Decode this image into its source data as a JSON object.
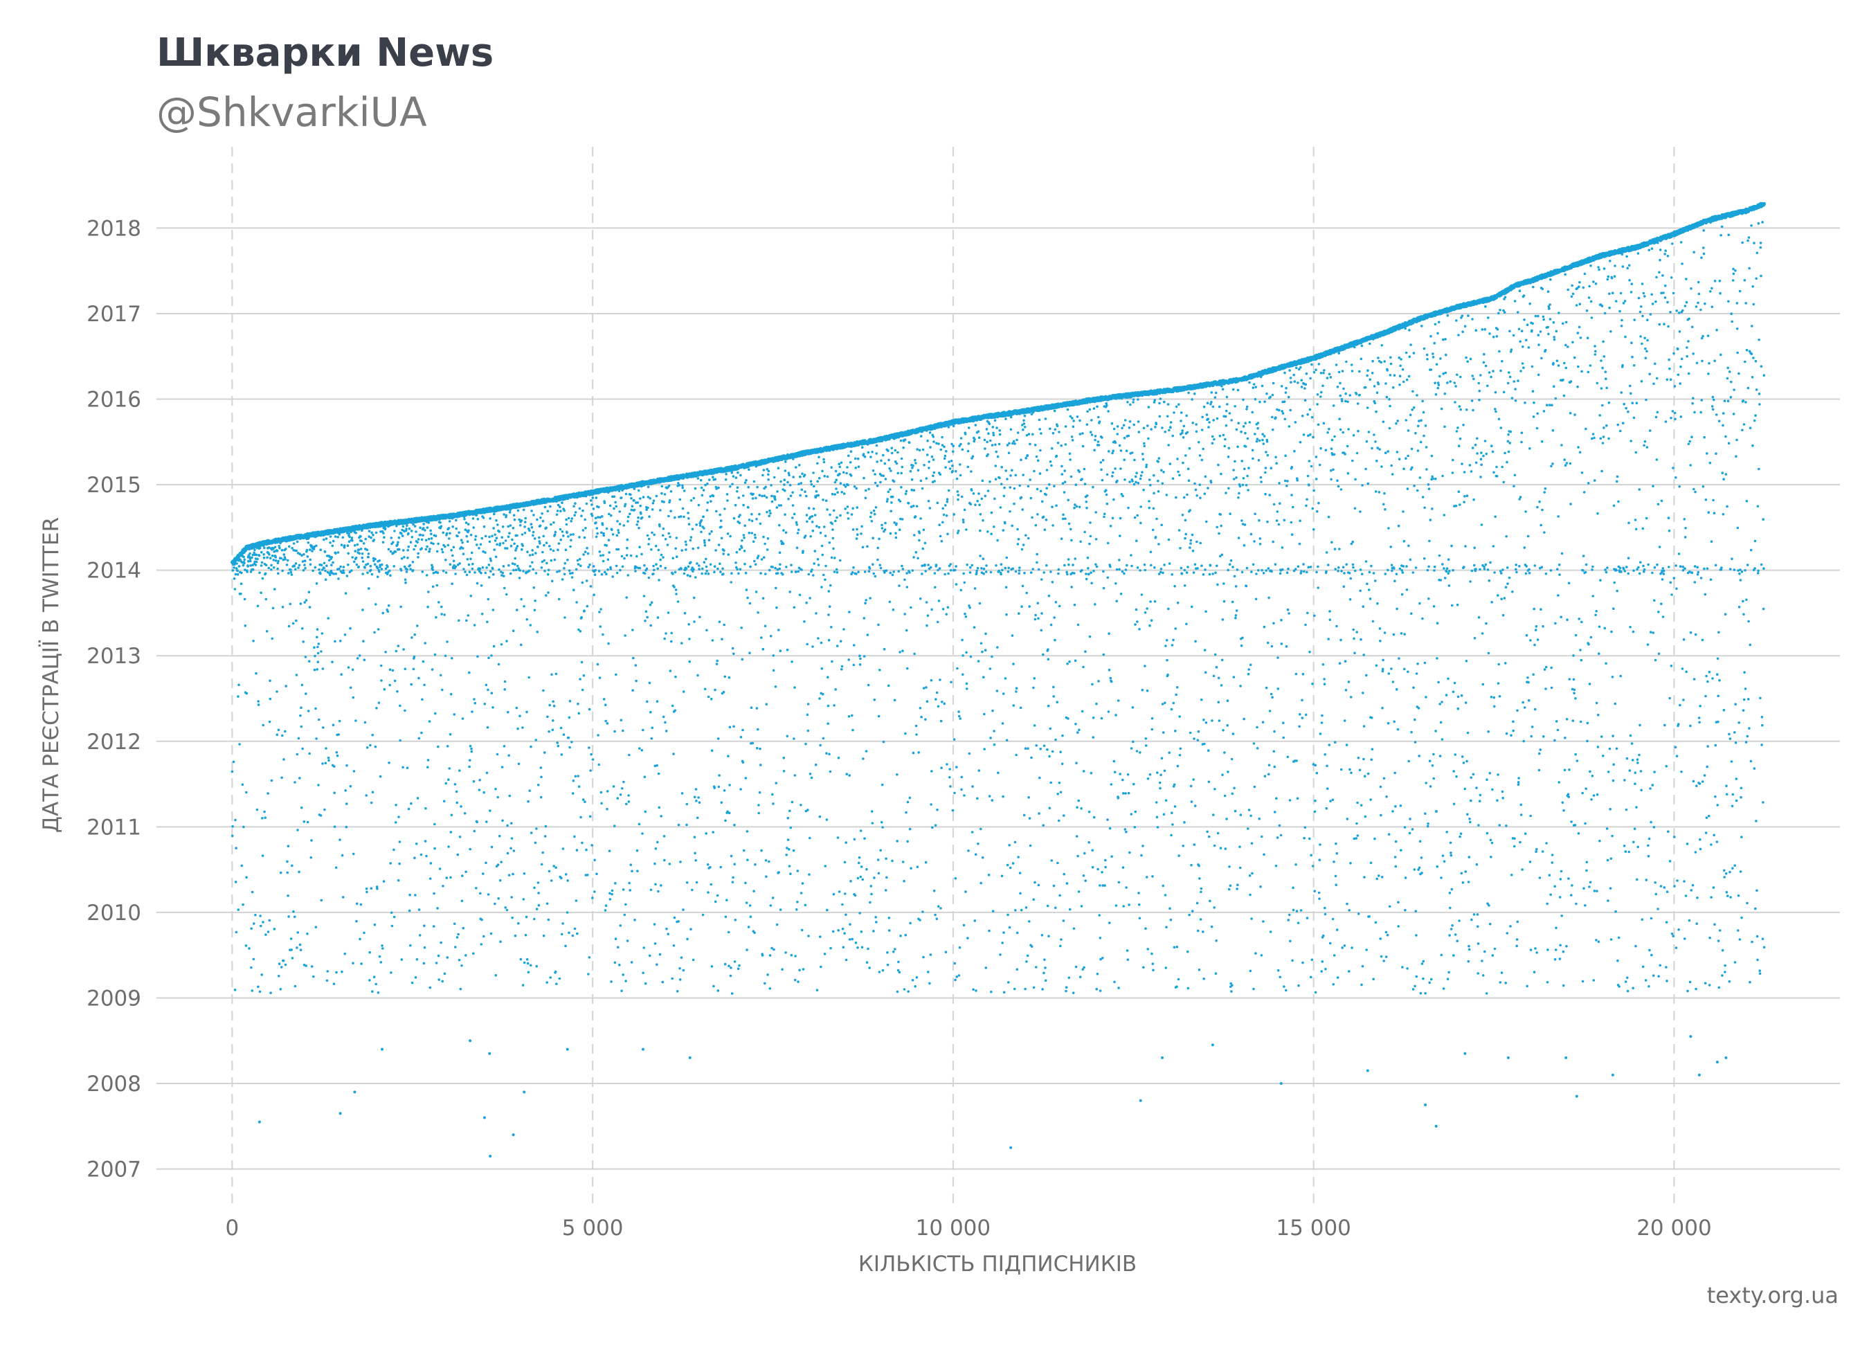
{
  "header": {
    "title": "Шкварки News",
    "subtitle": "@ShkvarkiUA"
  },
  "footer": {
    "source": "texty.org.ua"
  },
  "colors": {
    "points": "#1aa3d9",
    "grid": "#d3d3d3",
    "text": "#6e6e6e",
    "title": "#3b3f4a"
  },
  "chart_data": {
    "type": "scatter",
    "title": "Шкварки News",
    "subtitle": "@ShkvarkiUA",
    "xlabel": "КІЛЬКІСТЬ ПІДПИСНИКІВ",
    "ylabel": "ДАТА РЕЄСТРАЦІЇ В TWITTER",
    "xlim": [
      -1050,
      22300
    ],
    "ylim": [
      2006.6,
      2018.95
    ],
    "x_ticks": [
      0,
      5000,
      10000,
      15000,
      20000
    ],
    "x_tick_labels": [
      "0",
      "5 000",
      "10 000",
      "15 000",
      "20 000"
    ],
    "y_ticks": [
      2007,
      2008,
      2009,
      2010,
      2011,
      2012,
      2013,
      2014,
      2015,
      2016,
      2017,
      2018
    ],
    "y_tick_labels": [
      "2007",
      "2008",
      "2009",
      "2010",
      "2011",
      "2012",
      "2013",
      "2014",
      "2015",
      "2016",
      "2017",
      "2018"
    ],
    "x_grid": "dashed",
    "y_grid": "solid",
    "legend": "none",
    "approx_point_count": 21200,
    "upper_frontier": {
      "description": "registration date of the newest follower at each follower index",
      "x": [
        0,
        200,
        500,
        1000,
        2000,
        3000,
        4000,
        5000,
        6000,
        7000,
        8000,
        9000,
        10000,
        10500,
        11000,
        12000,
        13000,
        14000,
        14500,
        15000,
        15500,
        16000,
        16500,
        17000,
        17500,
        17800,
        18000,
        18500,
        19000,
        19500,
        20000,
        20500,
        21000,
        21250
      ],
      "y": [
        2014.1,
        2014.28,
        2014.35,
        2014.42,
        2014.55,
        2014.65,
        2014.78,
        2014.93,
        2015.08,
        2015.22,
        2015.4,
        2015.55,
        2015.75,
        2015.82,
        2015.88,
        2016.02,
        2016.12,
        2016.25,
        2016.38,
        2016.5,
        2016.65,
        2016.8,
        2016.97,
        2017.1,
        2017.2,
        2017.35,
        2017.4,
        2017.55,
        2017.7,
        2017.8,
        2017.95,
        2018.12,
        2018.22,
        2018.3
      ]
    },
    "density_notes": {
      "dense_band": "most points lie between 2013.9 and the upper frontier",
      "sparse_region": "points scattered between 2009 and 2014",
      "outliers_below": [
        [
          380,
          2007.55
        ],
        [
          1500,
          2007.65
        ],
        [
          3500,
          2007.6
        ],
        [
          3580,
          2007.15
        ],
        [
          3900,
          2007.4
        ],
        [
          10800,
          2007.25
        ],
        [
          12600,
          2007.8
        ],
        [
          16550,
          2007.75
        ],
        [
          16700,
          2007.5
        ],
        [
          18650,
          2007.85
        ],
        [
          1700,
          2007.9
        ],
        [
          4050,
          2007.9
        ],
        [
          2080,
          2008.4
        ],
        [
          3300,
          2008.5
        ],
        [
          3570,
          2008.35
        ],
        [
          4650,
          2008.4
        ],
        [
          5700,
          2008.4
        ],
        [
          6350,
          2008.3
        ],
        [
          12900,
          2008.3
        ],
        [
          13600,
          2008.45
        ],
        [
          14550,
          2008.0
        ],
        [
          15750,
          2008.15
        ],
        [
          17100,
          2008.35
        ],
        [
          17700,
          2008.3
        ],
        [
          18500,
          2008.3
        ],
        [
          19150,
          2008.1
        ],
        [
          20230,
          2008.55
        ],
        [
          20350,
          2008.1
        ],
        [
          20600,
          2008.25
        ],
        [
          20720,
          2008.3
        ]
      ]
    }
  }
}
